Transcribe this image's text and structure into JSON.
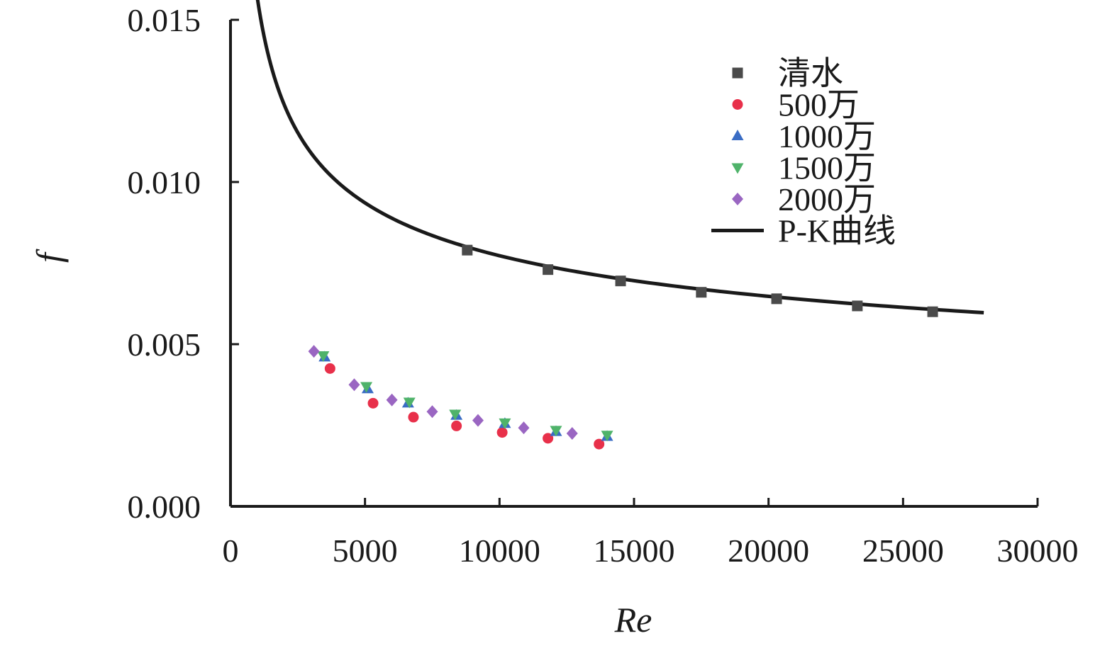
{
  "chart_data": {
    "type": "scatter",
    "xlabel": "Re",
    "ylabel": "f",
    "xlim": [
      0,
      30000
    ],
    "ylim": [
      0,
      0.015
    ],
    "x_ticks": [
      "0",
      "5000",
      "10000",
      "15000",
      "20000",
      "25000",
      "30000"
    ],
    "y_ticks": [
      "0.000",
      "0.005",
      "0.010",
      "0.015"
    ],
    "legend_position": "top-right",
    "series": [
      {
        "name": "清水",
        "marker": "square",
        "color": "#4a4a4a",
        "points": [
          [
            8800,
            0.0079
          ],
          [
            11800,
            0.0073
          ],
          [
            14500,
            0.00695
          ],
          [
            17500,
            0.0066
          ],
          [
            20300,
            0.0064
          ],
          [
            23300,
            0.00618
          ],
          [
            26100,
            0.006
          ]
        ]
      },
      {
        "name": "500万",
        "marker": "circle",
        "color": "#e8304a",
        "points": [
          [
            3700,
            0.00425
          ],
          [
            5300,
            0.00318
          ],
          [
            6800,
            0.00275
          ],
          [
            8400,
            0.00248
          ],
          [
            10100,
            0.00228
          ],
          [
            11800,
            0.0021
          ],
          [
            13700,
            0.00192
          ]
        ]
      },
      {
        "name": "1000万",
        "marker": "triangle-up",
        "color": "#3a6cc4",
        "points": [
          [
            3500,
            0.0046
          ],
          [
            5100,
            0.00362
          ],
          [
            6600,
            0.00318
          ],
          [
            8400,
            0.0028
          ],
          [
            10200,
            0.00255
          ],
          [
            12100,
            0.0023
          ],
          [
            14000,
            0.00215
          ]
        ]
      },
      {
        "name": "1500万",
        "marker": "triangle-down",
        "color": "#4fb36a",
        "points": [
          [
            3450,
            0.00465
          ],
          [
            5050,
            0.0037
          ],
          [
            6650,
            0.00322
          ],
          [
            8350,
            0.00285
          ],
          [
            10200,
            0.00258
          ],
          [
            12100,
            0.00235
          ],
          [
            14000,
            0.0022
          ]
        ]
      },
      {
        "name": "2000万",
        "marker": "diamond",
        "color": "#9a66c2",
        "points": [
          [
            3100,
            0.00478
          ],
          [
            4600,
            0.00375
          ],
          [
            6000,
            0.00328
          ],
          [
            7500,
            0.00292
          ],
          [
            9200,
            0.00265
          ],
          [
            10900,
            0.00242
          ],
          [
            12700,
            0.00225
          ]
        ]
      },
      {
        "name": "P-K曲线",
        "marker": "line",
        "color": "#1a1a1a",
        "x_range": [
          700,
          28000
        ],
        "formula": "1/sqrt(f) = 4.0*log10(Re*sqrt(f)) - 0.4"
      }
    ]
  }
}
